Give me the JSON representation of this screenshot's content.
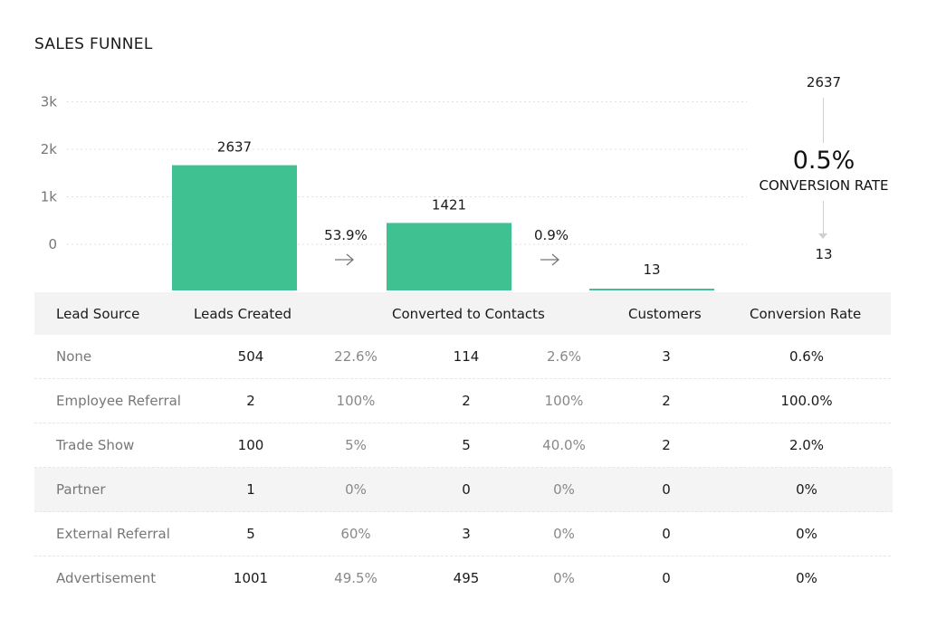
{
  "title": "SALES FUNNEL",
  "colors": {
    "bar": "#40c192",
    "grid": "#e0e0e0"
  },
  "chart_data": {
    "type": "bar",
    "title": "SALES FUNNEL",
    "y_ticks": [
      {
        "value": 0,
        "label": "0"
      },
      {
        "value": 1000,
        "label": "1k"
      },
      {
        "value": 2000,
        "label": "2k"
      },
      {
        "value": 3000,
        "label": "3k"
      }
    ],
    "ylim": [
      0,
      3000
    ],
    "stages": [
      {
        "name": "Leads Created",
        "value": 2637,
        "label": "2637"
      },
      {
        "name": "Converted to Contacts",
        "value": 1421,
        "label": "1421"
      },
      {
        "name": "Customers",
        "value": 13,
        "label": "13"
      }
    ],
    "step_rates": [
      "53.9%",
      "0.9%"
    ],
    "grid": true
  },
  "summary": {
    "top_value": "2637",
    "rate": "0.5%",
    "rate_label": "CONVERSION RATE",
    "bottom_value": "13"
  },
  "table": {
    "headers": {
      "lead_source": "Lead Source",
      "leads_created": "Leads Created",
      "converted": "Converted to Contacts",
      "customers": "Customers",
      "conversion_rate": "Conversion Rate"
    },
    "rows": [
      {
        "source": "None",
        "leads": "504",
        "leads_pct": "22.6%",
        "converted": "114",
        "converted_pct": "2.6%",
        "customers": "3",
        "rate": "0.6%"
      },
      {
        "source": "Employee Referral",
        "leads": "2",
        "leads_pct": "100%",
        "converted": "2",
        "converted_pct": "100%",
        "customers": "2",
        "rate": "100.0%"
      },
      {
        "source": "Trade Show",
        "leads": "100",
        "leads_pct": "5%",
        "converted": "5",
        "converted_pct": "40.0%",
        "customers": "2",
        "rate": "2.0%"
      },
      {
        "source": "Partner",
        "leads": "1",
        "leads_pct": "0%",
        "converted": "0",
        "converted_pct": "0%",
        "customers": "0",
        "rate": "0%"
      },
      {
        "source": "External Referral",
        "leads": "5",
        "leads_pct": "60%",
        "converted": "3",
        "converted_pct": "0%",
        "customers": "0",
        "rate": "0%"
      },
      {
        "source": "Advertisement",
        "leads": "1001",
        "leads_pct": "49.5%",
        "converted": "495",
        "converted_pct": "0%",
        "customers": "0",
        "rate": "0%"
      }
    ]
  }
}
